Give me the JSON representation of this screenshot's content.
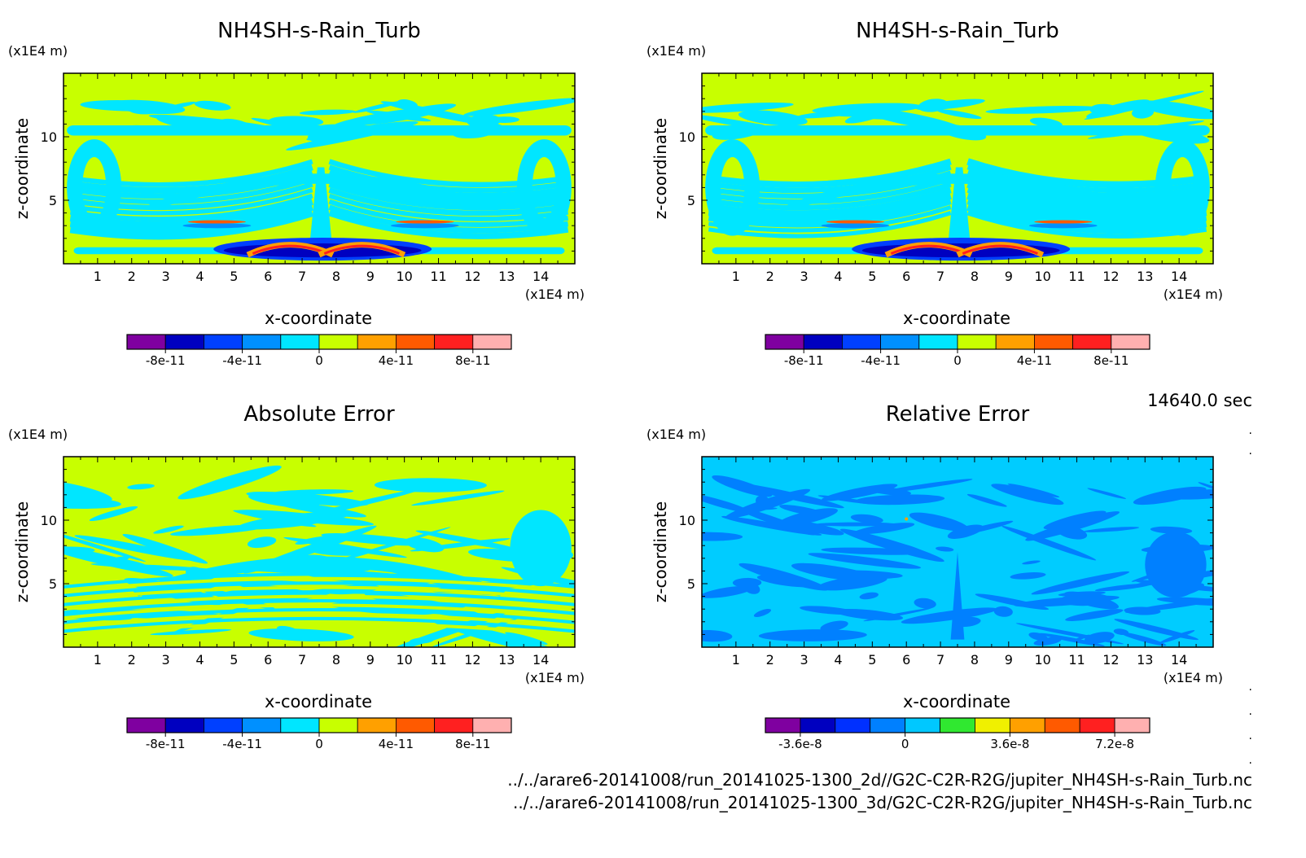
{
  "figure": {
    "time_label": "14640.0 sec",
    "file_paths": [
      "../../arare6-20141008/run_20141025-1300_2d//G2C-C2R-R2G/jupiter_NH4SH-s-Rain_Turb.nc",
      "../../arare6-20141008/run_20141025-1300_3d/G2C-C2R-R2G/jupiter_NH4SH-s-Rain_Turb.nc"
    ]
  },
  "chart_data": [
    {
      "type": "heatmap",
      "title": "NH4SH-s-Rain_Turb",
      "xlabel": "x-coordinate",
      "ylabel": "z-coordinate",
      "x_unit": "(x1E4 m)",
      "y_unit": "(x1E4 m)",
      "xlim": [
        0,
        15
      ],
      "ylim": [
        0,
        15
      ],
      "xticks": [
        1,
        2,
        3,
        4,
        5,
        6,
        7,
        8,
        9,
        10,
        11,
        12,
        13,
        14
      ],
      "yticks": [
        5,
        10
      ],
      "field": "mixed",
      "background": "#c8ff00",
      "colorbar": {
        "colors": [
          "#7f00a0",
          "#0000c0",
          "#0040ff",
          "#0090ff",
          "#00e6ff",
          "#c8ff00",
          "#ffa000",
          "#ff5a00",
          "#ff2020",
          "#ffb0b0"
        ],
        "tick_labels": [
          "-8e-11",
          "-4e-11",
          "0",
          "4e-11",
          "8e-11"
        ]
      }
    },
    {
      "type": "heatmap",
      "title": "NH4SH-s-Rain_Turb",
      "xlabel": "x-coordinate",
      "ylabel": "z-coordinate",
      "x_unit": "(x1E4 m)",
      "y_unit": "(x1E4 m)",
      "xlim": [
        0,
        15
      ],
      "ylim": [
        0,
        15
      ],
      "xticks": [
        1,
        2,
        3,
        4,
        5,
        6,
        7,
        8,
        9,
        10,
        11,
        12,
        13,
        14
      ],
      "yticks": [
        5,
        10
      ],
      "field": "mixed",
      "background": "#c8ff00",
      "colorbar": {
        "colors": [
          "#7f00a0",
          "#0000c0",
          "#0040ff",
          "#0090ff",
          "#00e6ff",
          "#c8ff00",
          "#ffa000",
          "#ff5a00",
          "#ff2020",
          "#ffb0b0"
        ],
        "tick_labels": [
          "-8e-11",
          "-4e-11",
          "0",
          "4e-11",
          "8e-11"
        ]
      }
    },
    {
      "type": "heatmap",
      "title": "Absolute Error",
      "xlabel": "x-coordinate",
      "ylabel": "z-coordinate",
      "x_unit": "(x1E4 m)",
      "y_unit": "(x1E4 m)",
      "xlim": [
        0,
        15
      ],
      "ylim": [
        0,
        15
      ],
      "xticks": [
        1,
        2,
        3,
        4,
        5,
        6,
        7,
        8,
        9,
        10,
        11,
        12,
        13,
        14
      ],
      "yticks": [
        5,
        10
      ],
      "field": "abs_error",
      "background": "#c8ff00",
      "colorbar": {
        "colors": [
          "#7f00a0",
          "#0000c0",
          "#0040ff",
          "#0090ff",
          "#00e6ff",
          "#c8ff00",
          "#ffa000",
          "#ff5a00",
          "#ff2020",
          "#ffb0b0"
        ],
        "tick_labels": [
          "-8e-11",
          "-4e-11",
          "0",
          "4e-11",
          "8e-11"
        ]
      }
    },
    {
      "type": "heatmap",
      "title": "Relative Error",
      "xlabel": "x-coordinate",
      "ylabel": "z-coordinate",
      "x_unit": "(x1E4 m)",
      "y_unit": "(x1E4 m)",
      "xlim": [
        0,
        15
      ],
      "ylim": [
        0,
        15
      ],
      "xticks": [
        1,
        2,
        3,
        4,
        5,
        6,
        7,
        8,
        9,
        10,
        11,
        12,
        13,
        14
      ],
      "yticks": [
        5,
        10
      ],
      "field": "rel_error",
      "background": "#00ccff",
      "colorbar": {
        "colors": [
          "#7f00a0",
          "#0000c0",
          "#0030ff",
          "#0080ff",
          "#00c8ff",
          "#30e830",
          "#f0f000",
          "#ffa000",
          "#ff5a00",
          "#ff2020",
          "#ffb0b0"
        ],
        "tick_labels": [
          "-3.6e-8",
          "0",
          "3.6e-8",
          "7.2e-8"
        ]
      }
    }
  ]
}
